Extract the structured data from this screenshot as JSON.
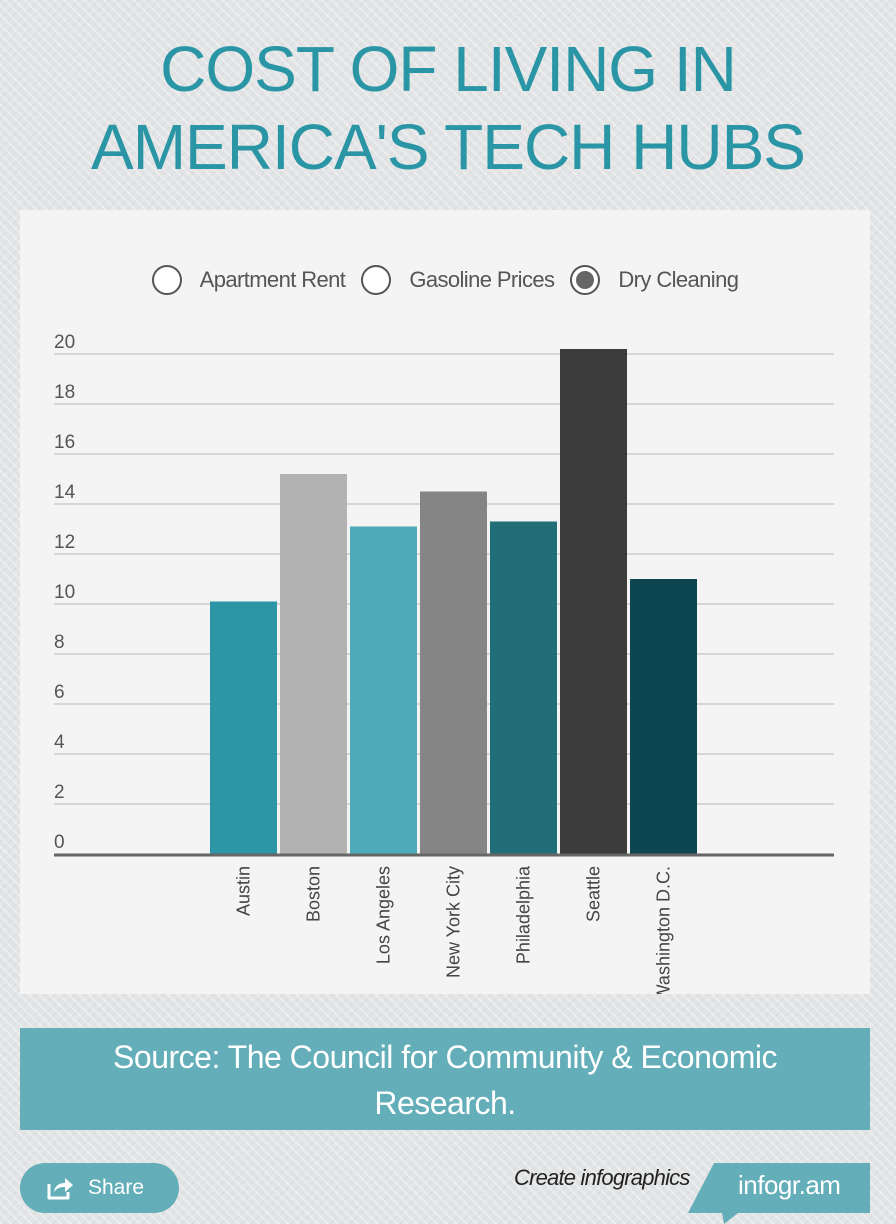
{
  "title": {
    "line1": "COST OF LIVING IN",
    "line2": "AMERICA'S TECH HUBS"
  },
  "legend": [
    {
      "label": "Apartment Rent",
      "selected": false
    },
    {
      "label": "Gasoline Prices",
      "selected": false
    },
    {
      "label": "Dry Cleaning",
      "selected": true
    }
  ],
  "chart_data": {
    "type": "bar",
    "categories": [
      "Austin",
      "Boston",
      "Los Angeles",
      "New York City",
      "Philadelphia",
      "Seattle",
      "Washington D.C."
    ],
    "values": [
      10.1,
      15.2,
      13.1,
      14.5,
      13.3,
      20.2,
      11.0
    ],
    "colors": [
      "#2c96a6",
      "#b2b2b2",
      "#4eabba",
      "#858585",
      "#216d78",
      "#3c3c3c",
      "#0d4651"
    ],
    "yticks": [
      0,
      2,
      4,
      6,
      8,
      10,
      12,
      14,
      16,
      18,
      20
    ],
    "ylim": [
      0,
      20
    ],
    "grid": true
  },
  "source": {
    "line1": "Source: The Council for Community & Economic",
    "line2": "Research."
  },
  "share": {
    "label": "Share",
    "icon": "share-icon"
  },
  "footer": {
    "create_text": "Create infographics",
    "brand": "infogr.am"
  },
  "colors": {
    "accent": "#2a95a5",
    "panel": "#f4f4f4",
    "banner": "#63aeb8"
  }
}
